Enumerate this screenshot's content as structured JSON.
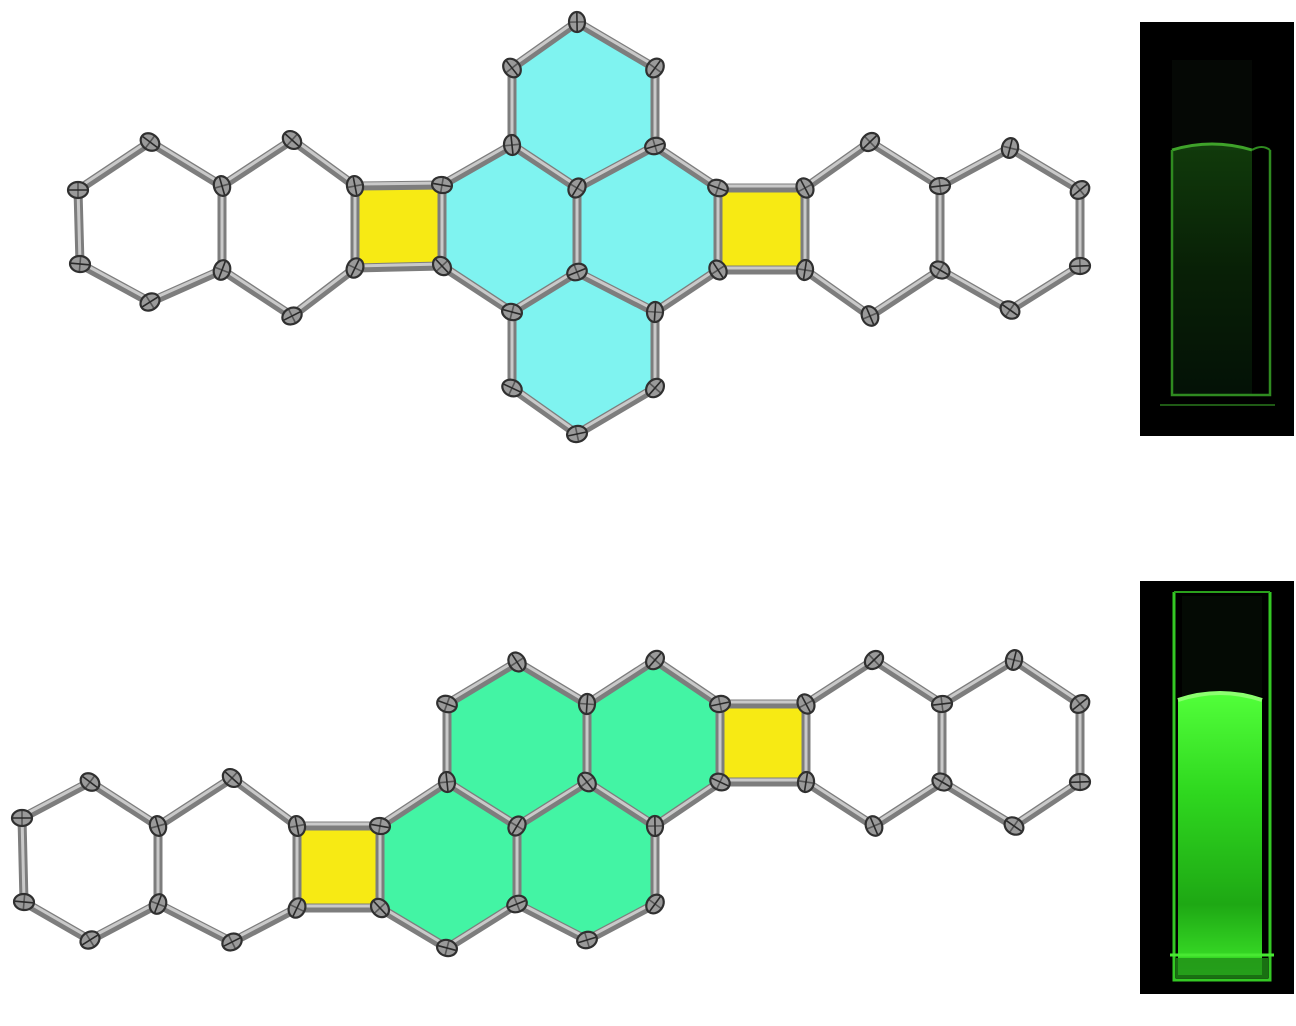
{
  "colors": {
    "top_fused_ring_fill": "#7ff3f0",
    "bottom_fused_ring_fill": "#43f4a4",
    "four_membered_ring_fill": "#f7ea14",
    "bond": "#7d7d7d",
    "atom": "#9a9a9a",
    "cuvette_background": "#000000",
    "top_fluorescence": "#1a5a10",
    "bottom_fluorescence": "#33e022"
  },
  "panels": [
    {
      "id": "top",
      "structure": "top-molecule-structure",
      "fluorescence": "weak"
    },
    {
      "id": "bottom",
      "structure": "bottom-molecule-structure",
      "fluorescence": "bright"
    }
  ]
}
